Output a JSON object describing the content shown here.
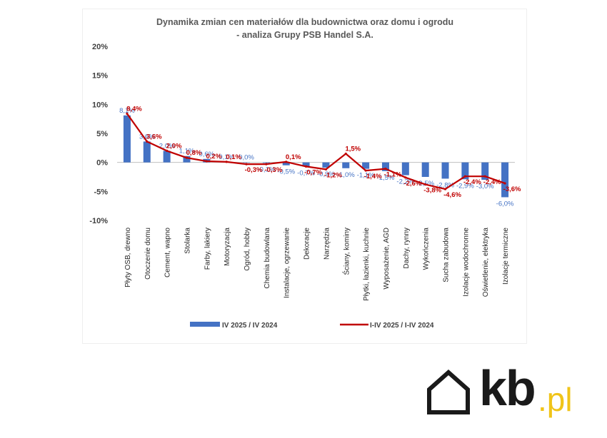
{
  "chart_data": {
    "type": "bar",
    "title_lines": [
      "Dynamika zmian cen materiałów dla budownictwa oraz domu i ogrodu",
      "- analiza Grupy PSB Handel S.A."
    ],
    "categories": [
      "Płyty OSB, drewno",
      "Otoczenie domu",
      "Cement, wapno",
      "Stolarka",
      "Farby, lakiery",
      "Motoryzacja",
      "Ogród, hobby",
      "Chemia budowlana",
      "Instalacje, ogrzewanie",
      "Dekoracje",
      "Narzędzia",
      "Ściany, kominy",
      "Płytki, łazienki, kuchnie",
      "Wyposażenie, AGD",
      "Dachy, rynny",
      "Wykończenia",
      "Sucha zabudowa",
      "Izolacje wodochronne",
      "Oświetlenie, elektryka",
      "Izolacje termiczne"
    ],
    "series": [
      {
        "name": "IV 2025 / IV 2024",
        "type": "bar",
        "color": "#4472C4",
        "values": [
          8.1,
          3.6,
          2.0,
          1.1,
          0.6,
          0.1,
          0.0,
          -0.1,
          -0.5,
          -0.7,
          -0.9,
          -1.0,
          -1.1,
          -1.5,
          -2.2,
          -2.5,
          -2.8,
          -2.9,
          -3.0,
          -6.0
        ],
        "labels": [
          "8,1%",
          "3,6%",
          "2,0%",
          "1,1%",
          "0,6%",
          "0,1%",
          "0,0%",
          "-0,1%",
          "-0,5%",
          "-0,7%",
          "-0,9%",
          "-1,0%",
          "-1,1%",
          "-1,5%",
          "-2,2%",
          "-2,5%",
          "-2,8%",
          "-2,9%",
          "-3,0%",
          "-6,0%"
        ]
      },
      {
        "name": "I-IV 2025 / I-IV 2024",
        "type": "line",
        "color": "#C00000",
        "values": [
          8.4,
          3.6,
          2.0,
          0.8,
          0.2,
          0.1,
          -0.3,
          -0.3,
          0.1,
          -0.7,
          -1.2,
          1.5,
          -1.4,
          -1.1,
          -2.6,
          -3.8,
          -4.6,
          -2.4,
          -2.4,
          -3.6
        ],
        "labels": [
          "8,4%",
          "3,6%",
          "2,0%",
          "0,8%",
          "0,2%",
          "0,1%",
          "-0,3%",
          "-0,3%",
          "0,1%",
          "-0,7%",
          "-1,2%",
          "1,5%",
          "-1,4%",
          "-1,1%",
          "-2,6%",
          "-3,8%",
          "-4,6%",
          "-2,4%",
          "-2,4%",
          "-3,6%"
        ]
      }
    ],
    "ylim": [
      -10,
      20
    ],
    "yticks": [
      -10,
      -5,
      0,
      5,
      10,
      15,
      20
    ],
    "ytick_labels": [
      "-10%",
      "-5%",
      "0%",
      "5%",
      "10%",
      "15%",
      "20%"
    ],
    "legend_position": "bottom",
    "grid": false
  },
  "brand": {
    "main": "kb",
    "suffix": ".pl",
    "icon": "house-outline-icon",
    "accent_color": "#f0c419"
  }
}
